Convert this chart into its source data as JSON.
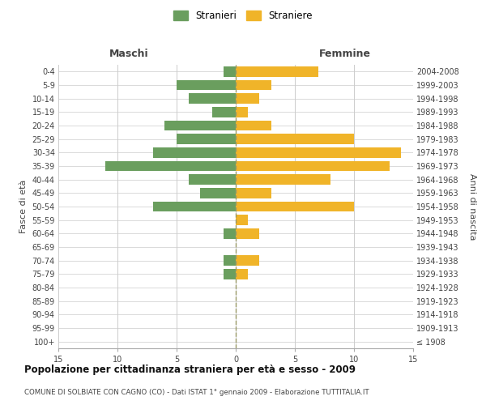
{
  "age_groups": [
    "100+",
    "95-99",
    "90-94",
    "85-89",
    "80-84",
    "75-79",
    "70-74",
    "65-69",
    "60-64",
    "55-59",
    "50-54",
    "45-49",
    "40-44",
    "35-39",
    "30-34",
    "25-29",
    "20-24",
    "15-19",
    "10-14",
    "5-9",
    "0-4"
  ],
  "birth_years": [
    "≤ 1908",
    "1909-1913",
    "1914-1918",
    "1919-1923",
    "1924-1928",
    "1929-1933",
    "1934-1938",
    "1939-1943",
    "1944-1948",
    "1949-1953",
    "1954-1958",
    "1959-1963",
    "1964-1968",
    "1969-1973",
    "1974-1978",
    "1979-1983",
    "1984-1988",
    "1989-1993",
    "1994-1998",
    "1999-2003",
    "2004-2008"
  ],
  "maschi": [
    0,
    0,
    0,
    0,
    0,
    1,
    1,
    0,
    1,
    0,
    7,
    3,
    4,
    11,
    7,
    5,
    6,
    2,
    4,
    5,
    1
  ],
  "femmine": [
    0,
    0,
    0,
    0,
    0,
    1,
    2,
    0,
    2,
    1,
    10,
    3,
    8,
    13,
    14,
    10,
    3,
    1,
    2,
    3,
    7
  ],
  "maschi_color": "#6a9e5e",
  "femmine_color": "#f0b429",
  "grid_color": "#cccccc",
  "center_line_color": "#999966",
  "background_color": "#ffffff",
  "title": "Popolazione per cittadinanza straniera per età e sesso - 2009",
  "subtitle": "COMUNE DI SOLBIATE CON CAGNO (CO) - Dati ISTAT 1° gennaio 2009 - Elaborazione TUTTITALIA.IT",
  "xlabel_left": "Maschi",
  "xlabel_right": "Femmine",
  "ylabel_left": "Fasce di età",
  "ylabel_right": "Anni di nascita",
  "legend_stranieri": "Stranieri",
  "legend_straniere": "Straniere",
  "xlim": 15
}
